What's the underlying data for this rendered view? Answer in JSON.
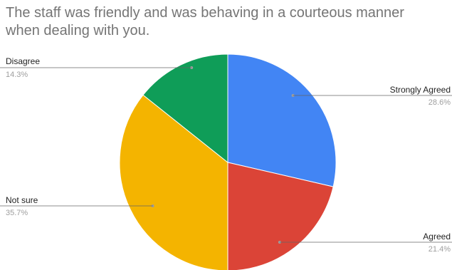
{
  "chart_data": {
    "type": "pie",
    "title": "The staff was friendly and was behaving in a courteous manner when dealing with you.",
    "slices": [
      {
        "label": "Strongly Agreed",
        "value": 28.6,
        "display": "28.6%",
        "color": "#4285f4"
      },
      {
        "label": "Agreed",
        "value": 21.4,
        "display": "21.4%",
        "color": "#db4437"
      },
      {
        "label": "Not sure",
        "value": 35.7,
        "display": "35.7%",
        "color": "#f4b400"
      },
      {
        "label": "Disagree",
        "value": 14.3,
        "display": "14.3%",
        "color": "#0f9d58"
      }
    ],
    "legend": "none",
    "start": "top",
    "direction": "clockwise"
  }
}
